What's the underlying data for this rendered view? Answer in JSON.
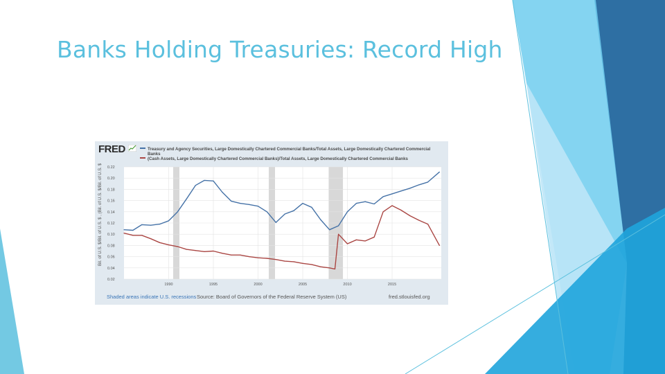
{
  "slide": {
    "title": "Banks Holding Treasuries: Record High"
  },
  "theme": {
    "accent": "#5BC0DE"
  },
  "chart_data": {
    "type": "line",
    "source_logo": "FRED",
    "ylabel": "Bil. of U.S. $/Bil. of U.S. $ , (Bil. of U.S. $/Bil. of U.S. $",
    "ylim": [
      0.02,
      0.22
    ],
    "yticks": [
      0.02,
      0.04,
      0.06,
      0.08,
      0.1,
      0.12,
      0.14,
      0.16,
      0.18,
      0.2,
      0.22
    ],
    "ytick_labels": [
      "0.02",
      "0.04",
      "0.06",
      "0.08",
      "0.10",
      "0.12",
      "0.14",
      "0.16",
      "0.18",
      "0.20",
      "0.22"
    ],
    "xlim": [
      1985,
      2020.5
    ],
    "xticks": [
      1990,
      1995,
      2000,
      2005,
      2010,
      2015
    ],
    "xtick_labels": [
      "1990",
      "1995",
      "2000",
      "2005",
      "2010",
      "2015"
    ],
    "grid": true,
    "legend_position": "top",
    "recessions": [
      [
        1990.5,
        1991.2
      ],
      [
        2001.2,
        2001.9
      ],
      [
        2007.9,
        2009.5
      ]
    ],
    "series": [
      {
        "name": "Treasury and Agency Securities, Large Domestically Chartered Commercial Banks/Total Assets, Large Domestically Chartered Commercial Banks",
        "color": "#4572A7",
        "x": [
          1985,
          1986,
          1987,
          1988,
          1989,
          1990,
          1991,
          1992,
          1993,
          1994,
          1995,
          1996,
          1997,
          1998,
          1999,
          2000,
          2001,
          2002,
          2003,
          2004,
          2005,
          2006,
          2007,
          2008,
          2009,
          2010,
          2011,
          2012,
          2013,
          2014,
          2015,
          2016,
          2017,
          2018,
          2019,
          2020.3
        ],
        "values": [
          0.108,
          0.107,
          0.117,
          0.116,
          0.118,
          0.124,
          0.14,
          0.163,
          0.187,
          0.196,
          0.195,
          0.175,
          0.159,
          0.155,
          0.153,
          0.15,
          0.14,
          0.121,
          0.136,
          0.142,
          0.155,
          0.148,
          0.126,
          0.108,
          0.115,
          0.14,
          0.155,
          0.158,
          0.154,
          0.167,
          0.172,
          0.177,
          0.182,
          0.188,
          0.193,
          0.211
        ]
      },
      {
        "name": "(Cash Assets, Large Domestically Chartered Commercial Banks)/Total Assets, Large Domestically Chartered Commercial Banks",
        "color": "#AA4643",
        "x": [
          1985,
          1986,
          1987,
          1988,
          1989,
          1990,
          1991,
          1992,
          1993,
          1994,
          1995,
          1996,
          1997,
          1998,
          1999,
          2000,
          2001,
          2002,
          2003,
          2004,
          2005,
          2006,
          2007,
          2008,
          2008.6,
          2009,
          2010,
          2011,
          2012,
          2013,
          2014,
          2015,
          2016,
          2017,
          2018,
          2019,
          2020.3
        ],
        "values": [
          0.102,
          0.098,
          0.098,
          0.092,
          0.085,
          0.081,
          0.078,
          0.073,
          0.071,
          0.069,
          0.07,
          0.066,
          0.063,
          0.063,
          0.06,
          0.058,
          0.057,
          0.055,
          0.052,
          0.051,
          0.048,
          0.046,
          0.042,
          0.04,
          0.038,
          0.1,
          0.083,
          0.09,
          0.088,
          0.095,
          0.14,
          0.151,
          0.143,
          0.133,
          0.125,
          0.118,
          0.08
        ]
      }
    ],
    "footer_left": "Shaded areas indicate U.S. recessions",
    "footer_source": "Source: Board of Governors of the Federal Reserve System (US)",
    "footer_site": "fred.stlouisfed.org"
  }
}
